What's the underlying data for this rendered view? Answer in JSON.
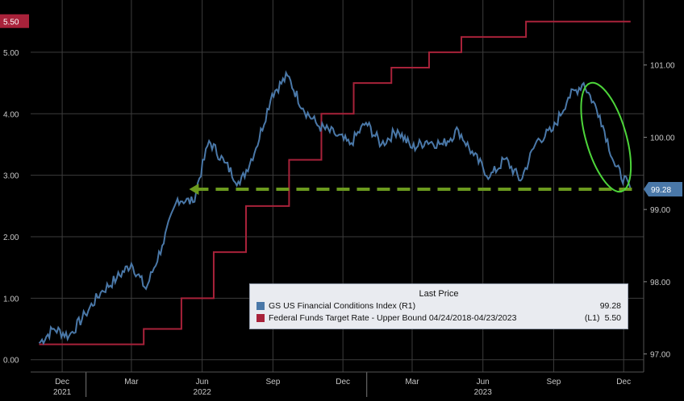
{
  "chart_data": {
    "type": "line",
    "x_ticks": [
      "Dec",
      "Mar",
      "Jun",
      "Sep",
      "Dec",
      "Mar",
      "Jun",
      "Sep",
      "Dec"
    ],
    "year_labels": [
      "2021",
      "2022",
      "2023"
    ],
    "left_axis": {
      "ticks": [
        "0.00",
        "1.00",
        "2.00",
        "3.00",
        "4.00",
        "5.00"
      ],
      "range": [
        -0.2,
        5.85
      ]
    },
    "right_axis": {
      "ticks": [
        "97.00",
        "98.00",
        "99.00",
        "100.00",
        "101.00"
      ],
      "range": [
        96.75,
        101.9
      ]
    },
    "series": [
      {
        "name": "GS US Financial Conditions Index  (R1)",
        "axis": "right",
        "color": "#4a78a8",
        "last_value": "99.28",
        "x": [
          "2021-11-01",
          "2021-11-20",
          "2021-12-10",
          "2021-12-31",
          "2022-01-20",
          "2022-02-10",
          "2022-03-01",
          "2022-03-20",
          "2022-04-10",
          "2022-04-30",
          "2022-05-20",
          "2022-06-10",
          "2022-06-30",
          "2022-07-20",
          "2022-08-10",
          "2022-08-31",
          "2022-09-20",
          "2022-10-10",
          "2022-10-31",
          "2022-11-20",
          "2022-12-10",
          "2022-12-31",
          "2023-01-20",
          "2023-02-10",
          "2023-03-01",
          "2023-03-20",
          "2023-04-10",
          "2023-04-30",
          "2023-05-20",
          "2023-06-10",
          "2023-06-30",
          "2023-07-20",
          "2023-08-10",
          "2023-08-31",
          "2023-09-20",
          "2023-10-10",
          "2023-10-31",
          "2023-11-20",
          "2023-12-10"
        ],
        "y": [
          97.15,
          97.35,
          97.25,
          97.55,
          97.85,
          98.05,
          98.25,
          97.9,
          98.5,
          99.15,
          99.1,
          99.95,
          99.65,
          99.35,
          99.85,
          100.6,
          100.85,
          100.4,
          100.15,
          100.05,
          99.9,
          100.2,
          99.9,
          100.1,
          99.85,
          99.95,
          99.9,
          100.1,
          99.75,
          99.45,
          99.7,
          99.4,
          99.95,
          100.1,
          100.55,
          100.75,
          100.3,
          99.6,
          99.28
        ]
      },
      {
        "name": "Federal Funds Target Rate - Upper Bound 04/24/2018-04/23/2023",
        "axis": "left",
        "axis_label": "(L1)",
        "color": "#a8223a",
        "last_value": "5.50",
        "x": [
          "2021-11-01",
          "2022-03-17",
          "2022-05-05",
          "2022-06-16",
          "2022-07-28",
          "2022-09-22",
          "2022-11-03",
          "2022-12-15",
          "2023-02-02",
          "2023-03-23",
          "2023-05-04",
          "2023-07-27",
          "2023-12-10"
        ],
        "y": [
          0.25,
          0.5,
          1.0,
          1.75,
          2.5,
          3.25,
          4.0,
          4.5,
          4.75,
          5.0,
          5.25,
          5.5,
          5.5
        ]
      }
    ],
    "annotations": [
      "dashed green horizontal line at 99.28 with left-pointing arrow",
      "green ellipse around the recent decline"
    ],
    "legend": {
      "title": "Last Price",
      "position": "bottom-right"
    },
    "grid": true
  }
}
